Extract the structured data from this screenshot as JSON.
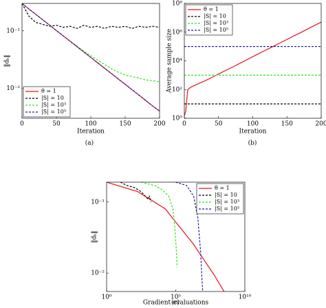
{
  "chart_data": [
    {
      "type": "line",
      "caption": "(a)",
      "xlabel": "Iteration",
      "ylabel": "‖dₖ‖",
      "ylog": true,
      "legend": "lower left",
      "xlim": [
        0,
        200
      ],
      "xticks": [
        0,
        50,
        100,
        150,
        200
      ],
      "ylim": [
        0.003,
        0.3
      ],
      "yticks": [
        {
          "value": 0.01,
          "label": "10⁻²"
        },
        {
          "value": 0.1,
          "label": "10⁻¹"
        }
      ],
      "x": [
        0,
        10,
        20,
        30,
        40,
        50,
        60,
        70,
        80,
        90,
        100,
        110,
        120,
        130,
        140,
        150,
        160,
        170,
        180,
        190,
        200
      ],
      "series": [
        {
          "name": "θ = 1",
          "color": "#e8101a",
          "linestyle": "solid",
          "values": [
            0.3,
            0.24,
            0.194,
            0.156,
            0.126,
            0.101,
            0.0817,
            0.0658,
            0.053,
            0.0427,
            0.0344,
            0.0277,
            0.0223,
            0.018,
            0.0145,
            0.0117,
            0.0094,
            0.0076,
            0.0061,
            0.0049,
            0.004
          ]
        },
        {
          "name": "|S| = 10",
          "color": "#000000",
          "linestyle": "dashed",
          "values": [
            0.3,
            0.18,
            0.14,
            0.13,
            0.12,
            0.125,
            0.115,
            0.12,
            0.11,
            0.125,
            0.115,
            0.12,
            0.11,
            0.12,
            0.115,
            0.12,
            0.11,
            0.12,
            0.115,
            0.12,
            0.115
          ]
        },
        {
          "name": "|S| = 10³",
          "color": "#2ee81a",
          "linestyle": "dashed",
          "values": [
            0.3,
            0.24,
            0.194,
            0.156,
            0.126,
            0.101,
            0.082,
            0.066,
            0.054,
            0.044,
            0.037,
            0.031,
            0.026,
            0.022,
            0.019,
            0.017,
            0.016,
            0.015,
            0.014,
            0.0135,
            0.013
          ]
        },
        {
          "name": "|S| = 10⁵",
          "color": "#1a1aa8",
          "linestyle": "dashed",
          "values": [
            0.3,
            0.24,
            0.194,
            0.156,
            0.126,
            0.101,
            0.0817,
            0.0658,
            0.053,
            0.0427,
            0.0344,
            0.0277,
            0.0223,
            0.018,
            0.0145,
            0.0117,
            0.0094,
            0.0076,
            0.0061,
            0.0049,
            0.004
          ]
        }
      ]
    },
    {
      "type": "line",
      "caption": "(b)",
      "xlabel": "Iteration",
      "ylabel": "Average sample size",
      "ylog": true,
      "legend": "upper left",
      "xlim": [
        0,
        200
      ],
      "xticks": [
        0,
        50,
        100,
        150,
        200
      ],
      "ylim": [
        1,
        100000000
      ],
      "yticks": [
        {
          "value": 1,
          "label": "10⁰"
        },
        {
          "value": 100,
          "label": "10²"
        },
        {
          "value": 10000,
          "label": "10⁴"
        },
        {
          "value": 1000000,
          "label": "10⁶"
        },
        {
          "value": 100000000,
          "label": "10⁸"
        }
      ],
      "x": [
        0,
        2,
        5,
        10,
        20,
        30,
        40,
        50,
        60,
        70,
        80,
        90,
        100,
        110,
        120,
        130,
        140,
        150,
        160,
        170,
        180,
        190,
        200
      ],
      "series": [
        {
          "name": "θ = 1",
          "color": "#e8101a",
          "linestyle": "solid",
          "values": [
            1.5,
            3,
            100,
            150,
            250,
            400,
            690,
            1200,
            2100,
            3600,
            6300,
            11000,
            19500,
            34000,
            59000,
            102000,
            178000,
            310000,
            540000,
            930000,
            1660000,
            2880000,
            5000000
          ]
        },
        {
          "name": "|S| = 10",
          "color": "#000000",
          "linestyle": "dashed",
          "values": [
            10,
            10,
            10,
            10,
            10,
            10,
            10,
            10,
            10,
            10,
            10,
            10,
            10,
            10,
            10,
            10,
            10,
            10,
            10,
            10,
            10,
            10,
            10
          ]
        },
        {
          "name": "|S| = 10³",
          "color": "#2ee81a",
          "linestyle": "dashed",
          "values": [
            1000,
            1000,
            1000,
            1000,
            1000,
            1000,
            1000,
            1000,
            1000,
            1000,
            1000,
            1000,
            1000,
            1000,
            1000,
            1000,
            1000,
            1000,
            1000,
            1000,
            1000,
            1000,
            1000
          ]
        },
        {
          "name": "|S| = 10⁵",
          "color": "#1a1aa8",
          "linestyle": "dashed",
          "values": [
            100000,
            100000,
            100000,
            100000,
            100000,
            100000,
            100000,
            100000,
            100000,
            100000,
            100000,
            100000,
            100000,
            100000,
            100000,
            100000,
            100000,
            100000,
            100000,
            100000,
            100000,
            100000,
            100000
          ]
        }
      ]
    },
    {
      "type": "line",
      "caption": "(c)",
      "xlabel": "Gradient evaluations",
      "ylabel": "‖dₖ‖",
      "ylog": true,
      "xlog": true,
      "legend": "upper right",
      "xlim": [
        1,
        10000000000
      ],
      "xticks": [
        {
          "value": 1,
          "label": "10⁰"
        },
        {
          "value": 100000,
          "label": "10⁵"
        },
        {
          "value": 10000000000,
          "label": "10¹⁰"
        }
      ],
      "ylim": [
        0.0055,
        0.19
      ],
      "yticks": [
        {
          "value": 0.01,
          "label": "10⁻²"
        },
        {
          "value": 0.1,
          "label": "10⁻¹"
        }
      ],
      "series": [
        {
          "name": "θ = 1",
          "color": "#e8101a",
          "linestyle": "solid",
          "x": [
            1,
            178,
            17800,
            100000,
            1780000,
            56000000,
            316000000
          ],
          "values": [
            0.19,
            0.14,
            0.08,
            0.052,
            0.026,
            0.0096,
            0.0055
          ]
        },
        {
          "name": "|S| = 10",
          "color": "#000000",
          "linestyle": "dashed",
          "x": [
            10,
            31.6,
            100,
            316,
            631,
            1000,
            1260,
            1580
          ],
          "values": [
            0.19,
            0.17,
            0.16,
            0.14,
            0.12,
            0.11,
            0.12,
            0.1
          ]
        },
        {
          "name": "|S| = 10³",
          "color": "#2ee81a",
          "linestyle": "dashed",
          "x": [
            316,
            3160,
            10000,
            31600,
            63100,
            89100,
            112000,
            126000
          ],
          "values": [
            0.19,
            0.17,
            0.15,
            0.12,
            0.08,
            0.04,
            0.02,
            0.012
          ]
        },
        {
          "name": "|S| = 10⁵",
          "color": "#1a1aa8",
          "linestyle": "dashed",
          "x": [
            100000,
            631000,
            2000000,
            3980000,
            6310000,
            7940000,
            8910000
          ],
          "values": [
            0.19,
            0.17,
            0.12,
            0.06,
            0.02,
            0.008,
            0.0055
          ]
        }
      ]
    }
  ]
}
